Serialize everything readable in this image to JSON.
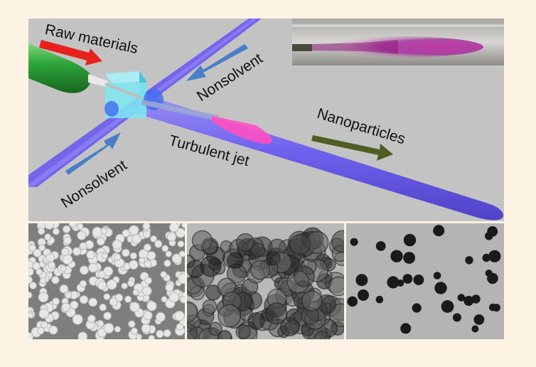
{
  "diagram": {
    "labels": {
      "raw_materials": "Raw materials",
      "nonsolvent_top": "Nonsolvent",
      "nonsolvent_bottom": "Nonsolvent",
      "turbulent_jet": "Turbulent jet",
      "nanoparticles": "Nanoparticles"
    },
    "colors": {
      "background": "#c3c3c3",
      "tube": "#6a5cf0",
      "mixer_block": "#7fe9f5",
      "raw_arrow": "#e8201c",
      "nonsolvent_arrow": "#4a7ec8",
      "nanoparticle_arrow": "#4e5e22",
      "jet": "#ff4fc2",
      "injector": "#2ea63a"
    }
  },
  "micrographs": [
    {
      "name": "sem-image-spheres"
    },
    {
      "name": "tem-image-aggregates"
    },
    {
      "name": "tem-image-dispersed-particles"
    }
  ]
}
